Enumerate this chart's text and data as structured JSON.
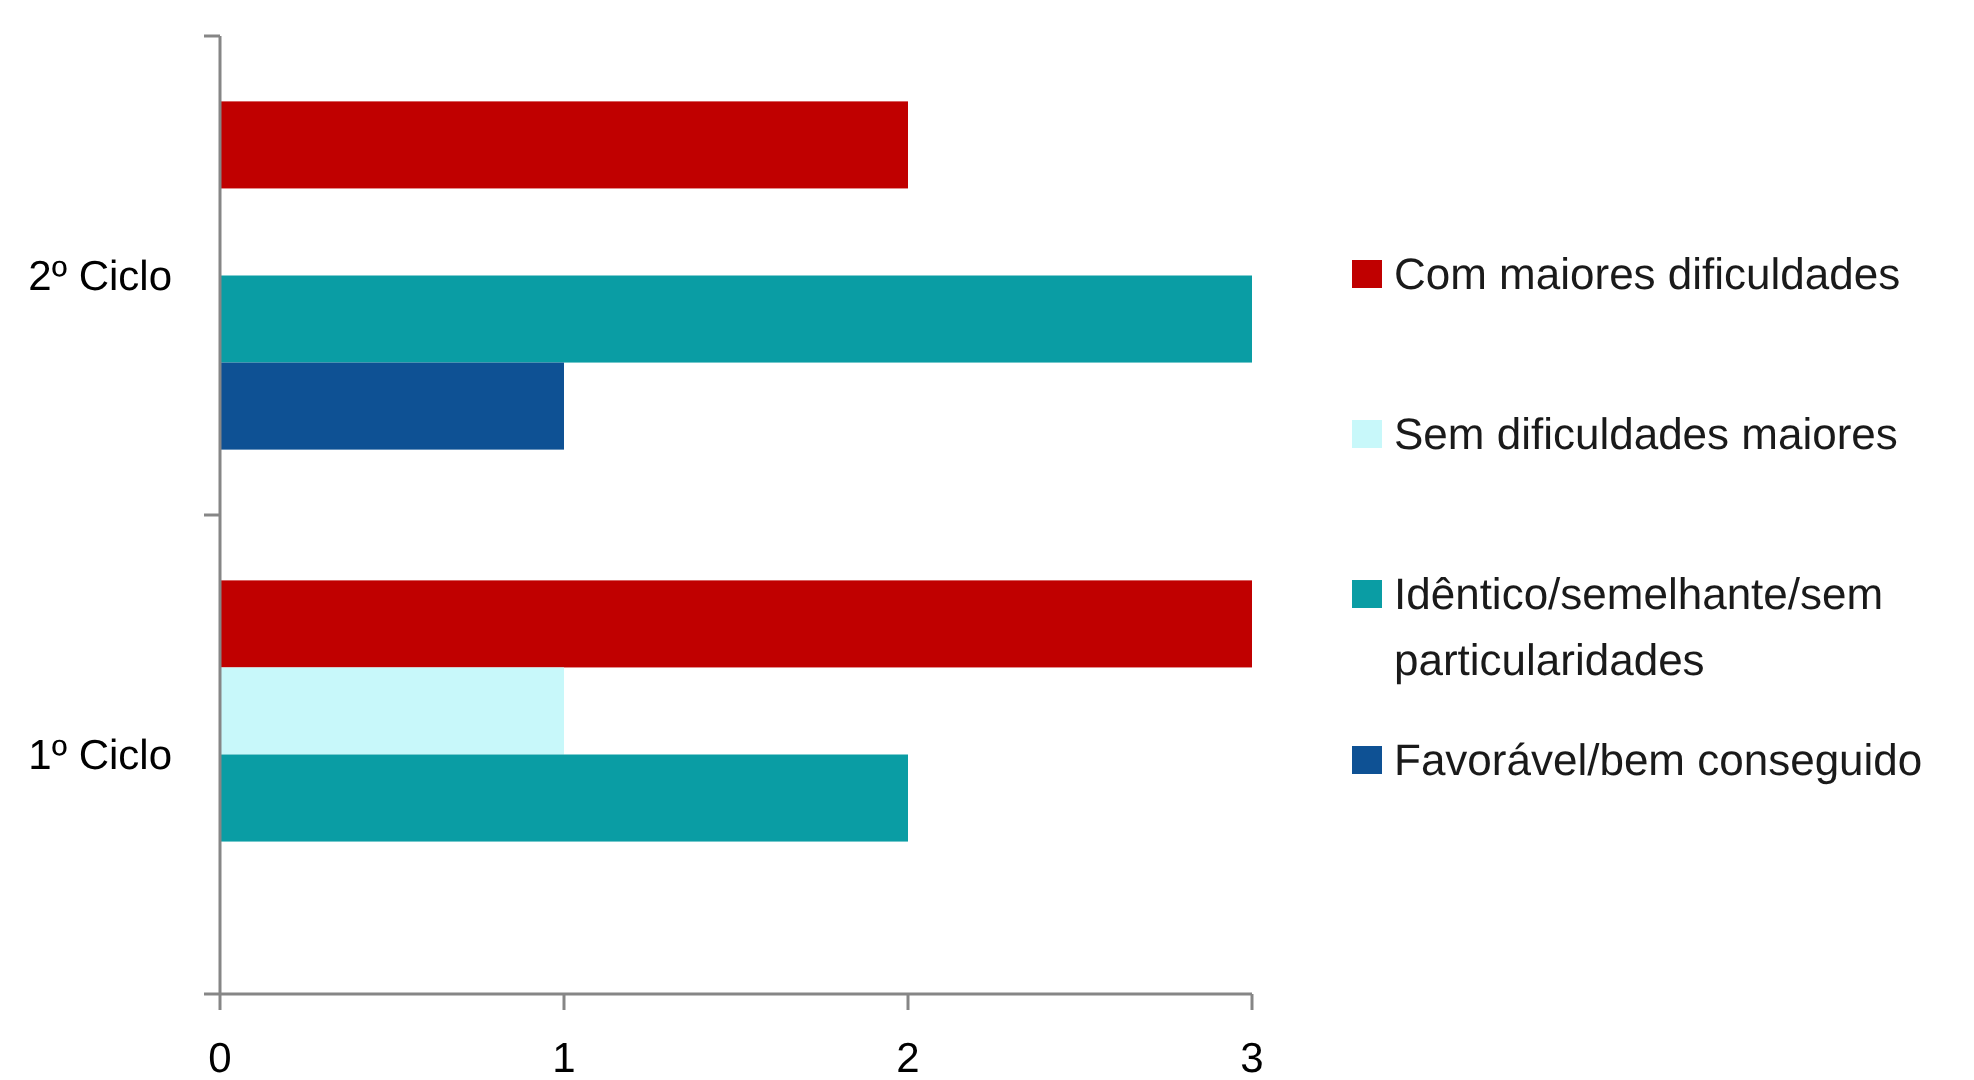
{
  "chart_data": {
    "type": "bar",
    "orientation": "horizontal",
    "categories": [
      "2º Ciclo",
      "1º Ciclo"
    ],
    "series": [
      {
        "name": "Com maiores dificuldades",
        "color": "#c00000",
        "values": [
          2,
          3
        ]
      },
      {
        "name": "Sem dificuldades maiores",
        "color": "#c8f8fa",
        "values": [
          0,
          1
        ]
      },
      {
        "name": "Idêntico/semelhante/sem particularidades",
        "color": "#0a9da4",
        "values": [
          3,
          2
        ]
      },
      {
        "name": "Favorável/bem conseguido",
        "color": "#0e5194",
        "values": [
          1,
          0
        ]
      }
    ],
    "xlim": [
      0,
      3
    ],
    "xticks": [
      0,
      1,
      2,
      3
    ],
    "grid": false,
    "legend": "right"
  }
}
